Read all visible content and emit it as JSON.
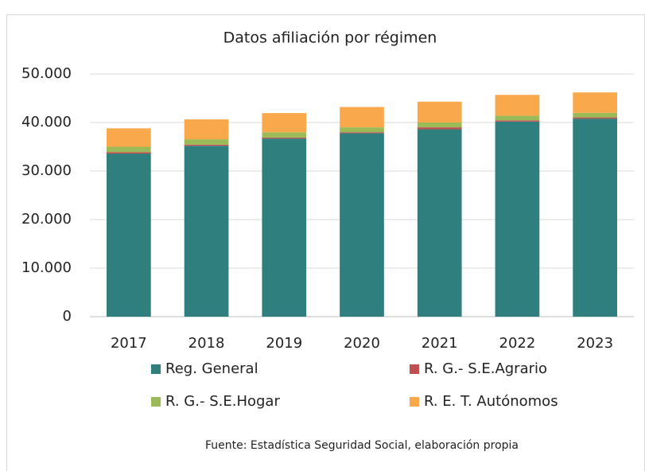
{
  "chart_data": {
    "type": "stacked_bar",
    "title": "Datos afiliación por régimen",
    "categories": [
      "2017",
      "2018",
      "2019",
      "2020",
      "2021",
      "2022",
      "2023"
    ],
    "series": [
      {
        "name": "Reg. General",
        "color": "#2e7f7e",
        "values": [
          33600,
          35200,
          36700,
          37800,
          38600,
          40200,
          40800
        ]
      },
      {
        "name": "R. G.- S.E.Agrario",
        "color": "#c0504d",
        "values": [
          300,
          250,
          200,
          200,
          400,
          250,
          250
        ]
      },
      {
        "name": "R. G.- S.E.Hogar",
        "color": "#9bbb59",
        "values": [
          1100,
          1100,
          1100,
          1000,
          1000,
          950,
          950
        ]
      },
      {
        "name": "R. E. T. Autónomos",
        "color": "#f9a94b",
        "values": [
          3800,
          4100,
          3950,
          4200,
          4300,
          4300,
          4200
        ]
      }
    ],
    "ylim": [
      0,
      50000
    ],
    "yticks": [
      0,
      {
        "value": 10000,
        "label": "10.000"
      },
      {
        "value": 20000,
        "label": "20.000"
      },
      {
        "value": 30000,
        "label": "30.000"
      },
      {
        "value": 40000,
        "label": "40.000"
      },
      {
        "value": 50000,
        "label": "50.000"
      }
    ],
    "grid": true,
    "source": "Fuente: Estadística Seguridad Social, elaboración propia"
  }
}
